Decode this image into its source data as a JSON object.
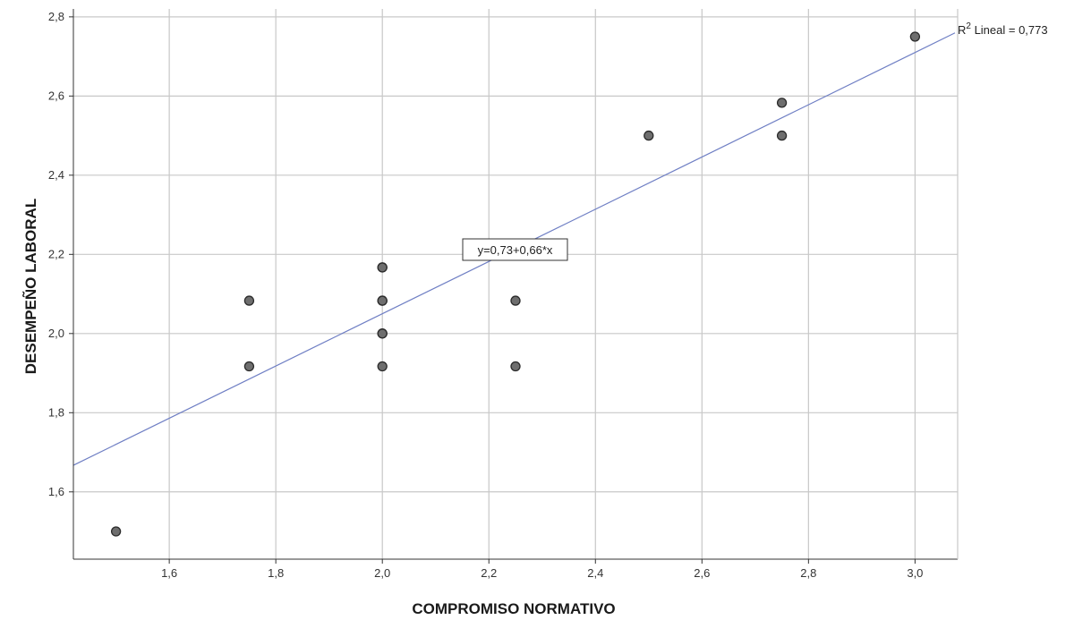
{
  "chart_data": {
    "type": "scatter",
    "xlabel": "COMPROMISO NORMATIVO",
    "ylabel": "DESEMPEÑO LABORAL",
    "xlim": [
      1.42,
      3.08
    ],
    "ylim": [
      1.43,
      2.82
    ],
    "xticks": [
      1.6,
      1.8,
      2.0,
      2.2,
      2.4,
      2.6,
      2.8,
      3.0
    ],
    "xtick_labels": [
      "1,6",
      "1,8",
      "2,0",
      "2,2",
      "2,4",
      "2,6",
      "2,8",
      "3,0"
    ],
    "yticks": [
      1.6,
      1.8,
      2.0,
      2.2,
      2.4,
      2.6,
      2.8
    ],
    "ytick_labels": [
      "1,6",
      "1,8",
      "2,0",
      "2,2",
      "2,4",
      "2,6",
      "2,8"
    ],
    "grid": true,
    "points": [
      {
        "x": 1.5,
        "y": 1.5
      },
      {
        "x": 1.75,
        "y": 1.917
      },
      {
        "x": 1.75,
        "y": 2.083
      },
      {
        "x": 2.0,
        "y": 1.917
      },
      {
        "x": 2.0,
        "y": 2.0
      },
      {
        "x": 2.0,
        "y": 2.0
      },
      {
        "x": 2.0,
        "y": 2.083
      },
      {
        "x": 2.0,
        "y": 2.083
      },
      {
        "x": 2.0,
        "y": 2.167
      },
      {
        "x": 2.0,
        "y": 2.167
      },
      {
        "x": 2.25,
        "y": 1.917
      },
      {
        "x": 2.25,
        "y": 2.083
      },
      {
        "x": 2.5,
        "y": 2.5
      },
      {
        "x": 2.75,
        "y": 2.5
      },
      {
        "x": 2.75,
        "y": 2.583
      },
      {
        "x": 3.0,
        "y": 2.75
      }
    ],
    "fit_line": {
      "intercept": 0.73,
      "slope": 0.66
    },
    "equation_label": "y=0,73+0,66*x",
    "r2_label": {
      "prefix": "R",
      "superscript": "2",
      "text": " Lineal = 0,773"
    },
    "colors": {
      "point_fill": "#6e6e6e",
      "point_stroke": "#2b2b2b",
      "fit_line": "#6f7fc4",
      "grid": "#c8c8c8",
      "axis": "#333333"
    }
  }
}
